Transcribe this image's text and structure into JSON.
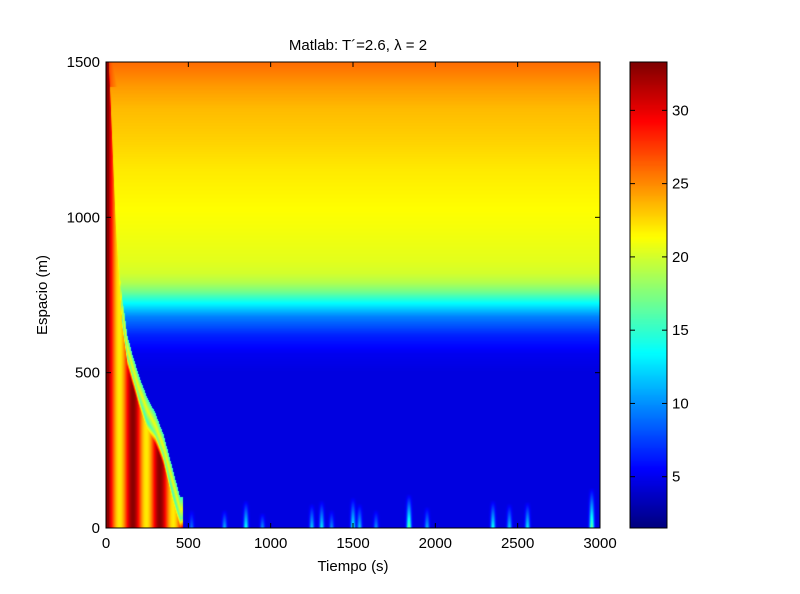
{
  "chart_data": {
    "type": "heatmap",
    "title": "Matlab: T´=2.6, λ = 2",
    "xlabel": "Tiempo (s)",
    "ylabel": "Espacio (m)",
    "xlim": [
      0,
      3000
    ],
    "ylim": [
      0,
      1500
    ],
    "x_ticks": [
      "0",
      "500",
      "1000",
      "1500",
      "2000",
      "2500",
      "3000"
    ],
    "x_tick_values": [
      0,
      500,
      1000,
      1500,
      2000,
      2500,
      3000
    ],
    "y_ticks": [
      "0",
      "500",
      "1000",
      "1500"
    ],
    "y_tick_values": [
      0,
      500,
      1000,
      1500
    ],
    "colorbar": {
      "colormap": "jet",
      "clim": [
        1.5,
        33.3
      ],
      "ticks": [
        "5",
        "10",
        "15",
        "20",
        "25",
        "30"
      ],
      "tick_values": [
        5,
        10,
        15,
        20,
        25,
        30
      ]
    },
    "steady_profile": {
      "y": [
        0,
        500,
        560,
        620,
        680,
        730,
        760,
        790,
        820,
        860,
        950,
        1050,
        1150,
        1250,
        1350,
        1420,
        1500
      ],
      "value": [
        4.5,
        4.5,
        5.0,
        6.5,
        9.5,
        14.0,
        17.0,
        19.0,
        20.0,
        20.5,
        21.0,
        21.5,
        22.0,
        22.8,
        23.5,
        24.5,
        26.0
      ]
    },
    "congestion_front": {
      "t": [
        20,
        60,
        100,
        130,
        160,
        200,
        250,
        300,
        350,
        400,
        450
      ],
      "y": [
        1500,
        1000,
        700,
        580,
        520,
        450,
        380,
        330,
        260,
        160,
        60
      ]
    },
    "bottom_waves": {
      "t": [
        520,
        720,
        850,
        950,
        1250,
        1310,
        1370,
        1500,
        1540,
        1640,
        1840,
        1950,
        2350,
        2450,
        2560,
        2950
      ],
      "peak": [
        9,
        11,
        14,
        10,
        12,
        13,
        10,
        14,
        12,
        10,
        17,
        11,
        14,
        12,
        13,
        17
      ],
      "height": [
        60,
        60,
        90,
        50,
        80,
        90,
        60,
        100,
        80,
        60,
        110,
        70,
        90,
        80,
        85,
        130
      ]
    }
  }
}
